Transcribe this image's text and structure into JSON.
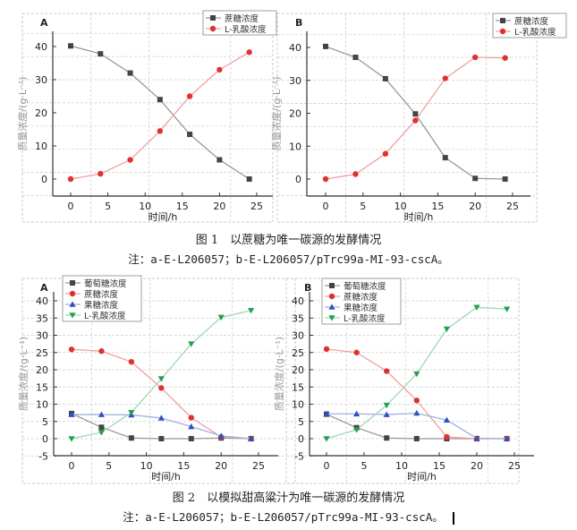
{
  "figure1": {
    "caption": "图 1　以蔗糖为唯一碳源的发酵情况",
    "note": "注：a-E-L206057；b-E-L206057/pTrc99a-MI-93-cscA。"
  },
  "figure2": {
    "caption": "图 2　以模拟甜高粱汁为唯一碳源的发酵情况",
    "note": "注：a-E-L206057；b-E-L206057/pTrc99a-MI-93-cscA。"
  },
  "chart_data": [
    {
      "id": "fig1A",
      "type": "line",
      "panel_label": "A",
      "xlabel": "时间/h",
      "ylabel": "质量浓度/(g·L⁻¹)",
      "xlim": [
        -2.5,
        27
      ],
      "ylim": [
        -5,
        45
      ],
      "xticks": [
        0,
        5,
        10,
        15,
        20,
        25
      ],
      "yticks": [
        0,
        10,
        20,
        30,
        40
      ],
      "legend": "top-right",
      "x": [
        0,
        4,
        8,
        12,
        16,
        20,
        24
      ],
      "series": [
        {
          "name": "蔗糖浓度",
          "color": "#444444",
          "line": "#999999",
          "marker": "square",
          "values": [
            40.2,
            37.8,
            32.0,
            24.0,
            13.5,
            5.8,
            0.0
          ]
        },
        {
          "name": "L-乳酸浓度",
          "color": "#e03030",
          "line": "#f0a0a0",
          "marker": "circle",
          "values": [
            0.0,
            1.6,
            5.8,
            14.5,
            25.0,
            33.0,
            38.3
          ]
        }
      ]
    },
    {
      "id": "fig1B",
      "type": "line",
      "panel_label": "B",
      "xlabel": "时间/h",
      "ylabel": "质量浓度/(g·L⁻¹)",
      "xlim": [
        -2.5,
        27
      ],
      "ylim": [
        -5,
        45
      ],
      "xticks": [
        0,
        5,
        10,
        15,
        20,
        25
      ],
      "yticks": [
        0,
        10,
        20,
        30,
        40
      ],
      "legend": "top-right",
      "x": [
        0,
        4,
        8,
        12,
        16,
        20,
        24
      ],
      "series": [
        {
          "name": "蔗糖浓度",
          "color": "#444444",
          "line": "#999999",
          "marker": "square",
          "values": [
            40.3,
            37.0,
            30.5,
            19.8,
            6.5,
            0.2,
            0.0
          ]
        },
        {
          "name": "L-乳酸浓度",
          "color": "#e03030",
          "line": "#f0a0a0",
          "marker": "circle",
          "values": [
            0.0,
            1.5,
            7.7,
            17.8,
            30.6,
            37.0,
            36.8
          ]
        }
      ]
    },
    {
      "id": "fig2A",
      "type": "line",
      "panel_label": "A",
      "xlabel": "时间/h",
      "ylabel": "质量浓度/(g·L⁻¹)",
      "xlim": [
        -2.5,
        28
      ],
      "ylim": [
        -5,
        42
      ],
      "xticks": [
        0,
        5,
        10,
        15,
        20,
        25
      ],
      "yticks": [
        -5,
        0,
        5,
        10,
        15,
        20,
        25,
        30,
        35,
        40
      ],
      "legend": "top-left",
      "x": [
        0,
        4,
        8,
        12,
        16,
        20,
        24
      ],
      "series": [
        {
          "name": "葡萄糖浓度",
          "color": "#444444",
          "line": "#999999",
          "marker": "square",
          "values": [
            7.3,
            3.3,
            0.2,
            0.0,
            0.0,
            0.2,
            0.0
          ]
        },
        {
          "name": "蔗糖浓度",
          "color": "#e03030",
          "line": "#f0a0a0",
          "marker": "circle",
          "values": [
            25.9,
            25.4,
            22.3,
            14.7,
            6.1,
            0.5,
            0.0
          ]
        },
        {
          "name": "果糖浓度",
          "color": "#3050c0",
          "line": "#a0b0e0",
          "marker": "triangle",
          "values": [
            7.0,
            7.0,
            6.9,
            6.0,
            3.5,
            0.8,
            0.0
          ]
        },
        {
          "name": "L-乳酸浓度",
          "color": "#20a050",
          "line": "#a0d8b0",
          "marker": "triangle-down",
          "values": [
            0.0,
            1.8,
            7.6,
            17.4,
            27.5,
            35.2,
            37.2
          ]
        }
      ]
    },
    {
      "id": "fig2B",
      "type": "line",
      "panel_label": "B",
      "xlabel": "时间/h",
      "ylabel": "质量浓度/(g·L⁻¹)",
      "xlim": [
        -2.5,
        28
      ],
      "ylim": [
        -5,
        42
      ],
      "xticks": [
        0,
        5,
        10,
        15,
        20,
        25
      ],
      "yticks": [
        -5,
        0,
        5,
        10,
        15,
        20,
        25,
        30,
        35,
        40
      ],
      "legend": "top-left",
      "x": [
        0,
        4,
        8,
        12,
        16,
        20,
        24
      ],
      "series": [
        {
          "name": "葡萄糖浓度",
          "color": "#444444",
          "line": "#999999",
          "marker": "square",
          "values": [
            7.1,
            3.2,
            0.2,
            0.0,
            0.0,
            0.0,
            0.0
          ]
        },
        {
          "name": "蔗糖浓度",
          "color": "#e03030",
          "line": "#f0a0a0",
          "marker": "circle",
          "values": [
            26.0,
            25.0,
            19.6,
            11.1,
            0.5,
            0.0,
            0.0
          ]
        },
        {
          "name": "果糖浓度",
          "color": "#3050c0",
          "line": "#a0b0e0",
          "marker": "triangle",
          "values": [
            7.2,
            7.2,
            7.0,
            7.4,
            5.4,
            0.1,
            0.0
          ]
        },
        {
          "name": "L-乳酸浓度",
          "color": "#20a050",
          "line": "#a0d8b0",
          "marker": "triangle-down",
          "values": [
            0.0,
            2.6,
            9.7,
            18.8,
            31.8,
            38.1,
            37.6
          ]
        }
      ]
    }
  ]
}
